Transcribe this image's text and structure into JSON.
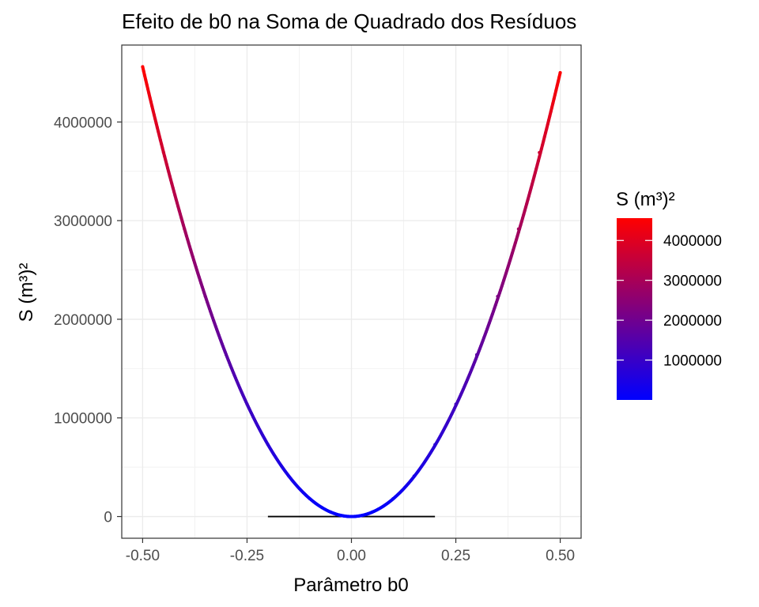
{
  "chart_data": {
    "type": "line",
    "title": "Efeito de b0 na Soma de Quadrado dos Resíduos",
    "xlabel": "Parâmetro b0",
    "ylabel": "S (m³)²",
    "xlim": [
      -0.55,
      0.55
    ],
    "ylim": [
      -220000,
      4780000
    ],
    "x_ticks": [
      -0.5,
      -0.25,
      0.0,
      0.25,
      0.5
    ],
    "x_tick_labels": [
      "-0.50",
      "-0.25",
      "0.00",
      "0.25",
      "0.50"
    ],
    "y_ticks": [
      0,
      1000000,
      2000000,
      3000000,
      4000000
    ],
    "y_tick_labels": [
      "0",
      "1000000",
      "2000000",
      "3000000",
      "4000000"
    ],
    "grid": true,
    "series": [
      {
        "x": [
          -0.5,
          -0.45,
          -0.4,
          -0.35,
          -0.3,
          -0.25,
          -0.2,
          -0.15,
          -0.1,
          -0.05,
          0.0,
          0.05,
          0.1,
          0.15,
          0.2,
          0.25,
          0.3,
          0.35,
          0.4,
          0.45,
          0.5
        ],
        "y": [
          4560000,
          3690000,
          2915000,
          2232000,
          1640000,
          1139000,
          729000,
          410000,
          182000,
          46000,
          0,
          46000,
          182000,
          410000,
          729000,
          1139000,
          1640000,
          2232000,
          2915000,
          3690000,
          4500000
        ]
      }
    ],
    "reference_segment": {
      "x": [
        -0.2,
        0.2
      ],
      "y": [
        0,
        0
      ],
      "color": "#000000"
    },
    "color_scale": {
      "title": "S (m³)²",
      "low_color": "#0000ff",
      "high_color": "#ff0000",
      "range": [
        0,
        4560000
      ],
      "breaks": [
        1000000,
        2000000,
        3000000,
        4000000
      ],
      "break_labels": [
        "1000000",
        "2000000",
        "3000000",
        "4000000"
      ],
      "position": "right"
    }
  }
}
